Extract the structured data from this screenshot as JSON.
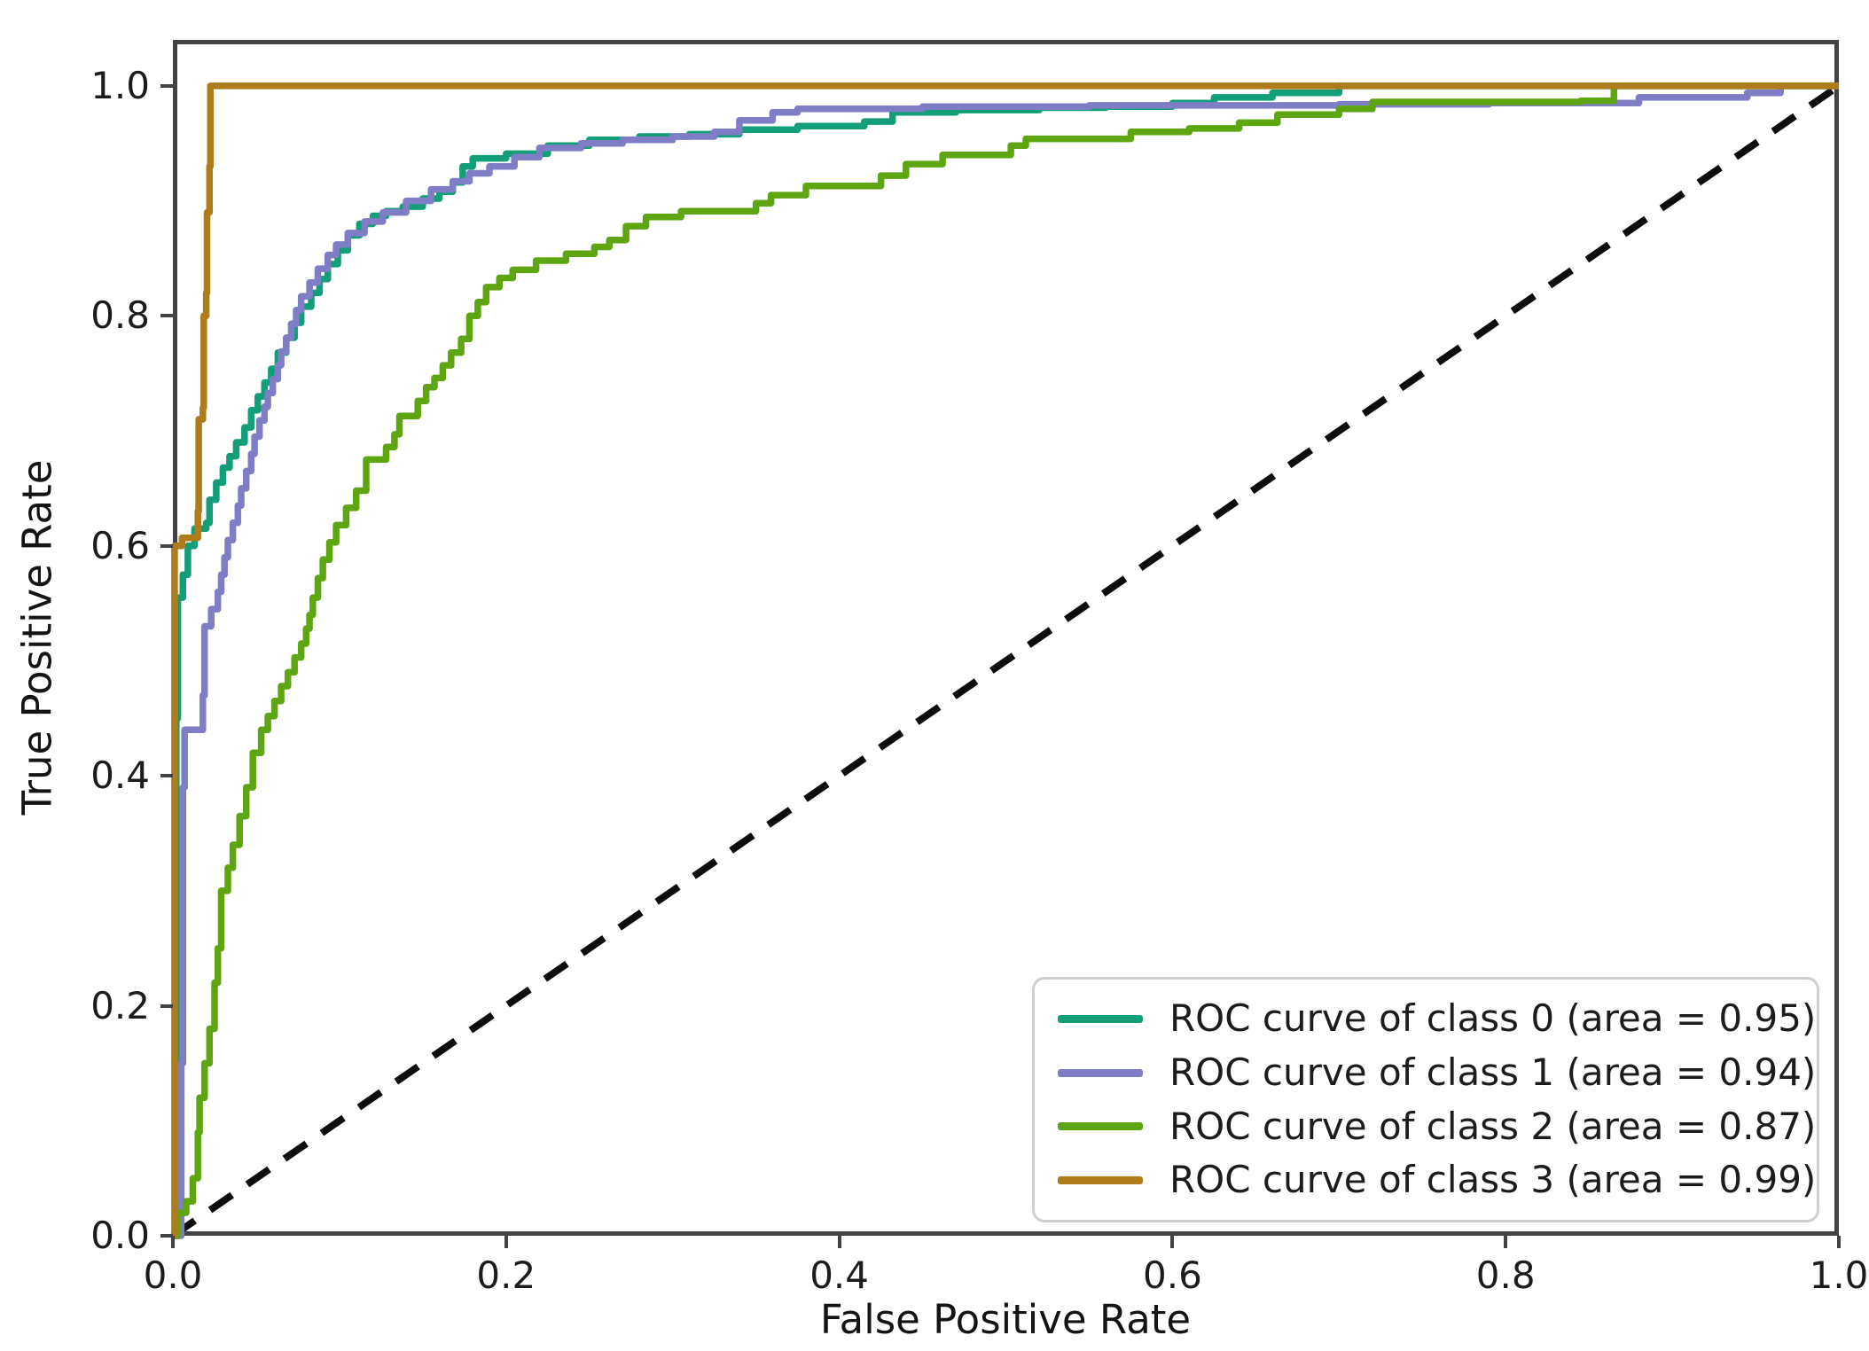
{
  "chart_data": {
    "type": "line",
    "subtype": "roc-step-curves",
    "title": "",
    "xlabel": "False Positive Rate",
    "ylabel": "True Positive Rate",
    "xlim": [
      0.0,
      1.0
    ],
    "ylim": [
      0.0,
      1.04
    ],
    "grid": false,
    "legend_position": "lower right",
    "xticks": [
      "0.0",
      "0.2",
      "0.4",
      "0.6",
      "0.8",
      "1.0"
    ],
    "xtick_values": [
      0.0,
      0.2,
      0.4,
      0.6,
      0.8,
      1.0
    ],
    "yticks": [
      "0.0",
      "0.2",
      "0.4",
      "0.6",
      "0.8",
      "1.0"
    ],
    "ytick_values": [
      0.0,
      0.2,
      0.4,
      0.6,
      0.8,
      1.0
    ],
    "reference_line": {
      "name": "chance-diagonal",
      "style": "dashed",
      "color": "#0d0d0d",
      "points": [
        [
          0,
          0
        ],
        [
          1,
          1
        ]
      ]
    },
    "series": [
      {
        "class": 0,
        "label": "ROC curve of class 0 (area = 0.95)",
        "auc": 0.95,
        "color": "#119e78",
        "step_points": [
          [
            0,
            0
          ],
          [
            0.002,
            0.45
          ],
          [
            0.003,
            0.555
          ],
          [
            0.006,
            0.575
          ],
          [
            0.009,
            0.6
          ],
          [
            0.013,
            0.615
          ],
          [
            0.02,
            0.62
          ],
          [
            0.022,
            0.64
          ],
          [
            0.026,
            0.655
          ],
          [
            0.03,
            0.668
          ],
          [
            0.034,
            0.678
          ],
          [
            0.038,
            0.69
          ],
          [
            0.043,
            0.703
          ],
          [
            0.047,
            0.718
          ],
          [
            0.051,
            0.73
          ],
          [
            0.055,
            0.742
          ],
          [
            0.059,
            0.754
          ],
          [
            0.063,
            0.768
          ],
          [
            0.068,
            0.781
          ],
          [
            0.073,
            0.794
          ],
          [
            0.077,
            0.808
          ],
          [
            0.083,
            0.82
          ],
          [
            0.088,
            0.832
          ],
          [
            0.093,
            0.845
          ],
          [
            0.099,
            0.857
          ],
          [
            0.105,
            0.87
          ],
          [
            0.112,
            0.88
          ],
          [
            0.12,
            0.887
          ],
          [
            0.128,
            0.891
          ],
          [
            0.138,
            0.895
          ],
          [
            0.15,
            0.902
          ],
          [
            0.16,
            0.908
          ],
          [
            0.168,
            0.916
          ],
          [
            0.174,
            0.93
          ],
          [
            0.18,
            0.937
          ],
          [
            0.2,
            0.941
          ],
          [
            0.225,
            0.948
          ],
          [
            0.25,
            0.953
          ],
          [
            0.28,
            0.956
          ],
          [
            0.31,
            0.958
          ],
          [
            0.34,
            0.962
          ],
          [
            0.375,
            0.965
          ],
          [
            0.415,
            0.969
          ],
          [
            0.432,
            0.977
          ],
          [
            0.47,
            0.979
          ],
          [
            0.52,
            0.981
          ],
          [
            0.56,
            0.982
          ],
          [
            0.6,
            0.985
          ],
          [
            0.625,
            0.99
          ],
          [
            0.66,
            0.994
          ],
          [
            0.7,
            1
          ],
          [
            1,
            1
          ]
        ]
      },
      {
        "class": 1,
        "label": "ROC curve of class 1 (area = 0.94)",
        "auc": 0.94,
        "color": "#7f7dc5",
        "step_points": [
          [
            0,
            0
          ],
          [
            0.005,
            0.15
          ],
          [
            0.006,
            0.39
          ],
          [
            0.007,
            0.44
          ],
          [
            0.018,
            0.47
          ],
          [
            0.019,
            0.53
          ],
          [
            0.023,
            0.545
          ],
          [
            0.027,
            0.56
          ],
          [
            0.029,
            0.575
          ],
          [
            0.031,
            0.59
          ],
          [
            0.033,
            0.605
          ],
          [
            0.036,
            0.62
          ],
          [
            0.039,
            0.635
          ],
          [
            0.041,
            0.65
          ],
          [
            0.044,
            0.665
          ],
          [
            0.047,
            0.68
          ],
          [
            0.049,
            0.695
          ],
          [
            0.052,
            0.709
          ],
          [
            0.055,
            0.721
          ],
          [
            0.057,
            0.733
          ],
          [
            0.06,
            0.745
          ],
          [
            0.063,
            0.757
          ],
          [
            0.065,
            0.769
          ],
          [
            0.068,
            0.781
          ],
          [
            0.071,
            0.793
          ],
          [
            0.074,
            0.805
          ],
          [
            0.077,
            0.817
          ],
          [
            0.082,
            0.829
          ],
          [
            0.087,
            0.841
          ],
          [
            0.093,
            0.853
          ],
          [
            0.098,
            0.862
          ],
          [
            0.105,
            0.872
          ],
          [
            0.115,
            0.882
          ],
          [
            0.126,
            0.89
          ],
          [
            0.14,
            0.9
          ],
          [
            0.155,
            0.91
          ],
          [
            0.168,
            0.917
          ],
          [
            0.178,
            0.924
          ],
          [
            0.19,
            0.93
          ],
          [
            0.205,
            0.938
          ],
          [
            0.22,
            0.946
          ],
          [
            0.245,
            0.95
          ],
          [
            0.27,
            0.953
          ],
          [
            0.3,
            0.956
          ],
          [
            0.325,
            0.96
          ],
          [
            0.34,
            0.97
          ],
          [
            0.36,
            0.977
          ],
          [
            0.375,
            0.98
          ],
          [
            0.45,
            0.982
          ],
          [
            0.55,
            0.983
          ],
          [
            0.7,
            0.984
          ],
          [
            0.79,
            0.985
          ],
          [
            0.88,
            0.99
          ],
          [
            0.945,
            0.994
          ],
          [
            0.965,
            1
          ],
          [
            1,
            1
          ]
        ]
      },
      {
        "class": 2,
        "label": "ROC curve of class 2 (area = 0.87)",
        "auc": 0.87,
        "color": "#5da611",
        "step_points": [
          [
            0,
            0
          ],
          [
            0.003,
            0.02
          ],
          [
            0.008,
            0.03
          ],
          [
            0.012,
            0.05
          ],
          [
            0.015,
            0.09
          ],
          [
            0.016,
            0.12
          ],
          [
            0.019,
            0.15
          ],
          [
            0.022,
            0.18
          ],
          [
            0.025,
            0.22
          ],
          [
            0.027,
            0.25
          ],
          [
            0.029,
            0.3
          ],
          [
            0.033,
            0.32
          ],
          [
            0.036,
            0.34
          ],
          [
            0.04,
            0.365
          ],
          [
            0.044,
            0.39
          ],
          [
            0.048,
            0.42
          ],
          [
            0.053,
            0.44
          ],
          [
            0.057,
            0.452
          ],
          [
            0.061,
            0.465
          ],
          [
            0.065,
            0.478
          ],
          [
            0.069,
            0.49
          ],
          [
            0.073,
            0.503
          ],
          [
            0.077,
            0.515
          ],
          [
            0.08,
            0.528
          ],
          [
            0.082,
            0.54
          ],
          [
            0.084,
            0.555
          ],
          [
            0.087,
            0.572
          ],
          [
            0.09,
            0.588
          ],
          [
            0.094,
            0.603
          ],
          [
            0.098,
            0.618
          ],
          [
            0.104,
            0.633
          ],
          [
            0.11,
            0.648
          ],
          [
            0.116,
            0.675
          ],
          [
            0.128,
            0.686
          ],
          [
            0.133,
            0.697
          ],
          [
            0.136,
            0.713
          ],
          [
            0.147,
            0.726
          ],
          [
            0.152,
            0.738
          ],
          [
            0.157,
            0.746
          ],
          [
            0.162,
            0.757
          ],
          [
            0.167,
            0.768
          ],
          [
            0.173,
            0.78
          ],
          [
            0.178,
            0.8
          ],
          [
            0.183,
            0.812
          ],
          [
            0.188,
            0.825
          ],
          [
            0.196,
            0.833
          ],
          [
            0.204,
            0.84
          ],
          [
            0.218,
            0.848
          ],
          [
            0.236,
            0.854
          ],
          [
            0.253,
            0.86
          ],
          [
            0.262,
            0.866
          ],
          [
            0.272,
            0.878
          ],
          [
            0.284,
            0.886
          ],
          [
            0.305,
            0.891
          ],
          [
            0.35,
            0.898
          ],
          [
            0.359,
            0.905
          ],
          [
            0.38,
            0.913
          ],
          [
            0.425,
            0.922
          ],
          [
            0.44,
            0.932
          ],
          [
            0.462,
            0.94
          ],
          [
            0.503,
            0.948
          ],
          [
            0.512,
            0.954
          ],
          [
            0.575,
            0.96
          ],
          [
            0.61,
            0.963
          ],
          [
            0.64,
            0.968
          ],
          [
            0.663,
            0.975
          ],
          [
            0.7,
            0.98
          ],
          [
            0.72,
            0.986
          ],
          [
            0.845,
            0.987
          ],
          [
            0.865,
            1
          ],
          [
            1,
            1
          ]
        ]
      },
      {
        "class": 3,
        "label": "ROC curve of class 3 (area = 0.99)",
        "auc": 0.99,
        "color": "#ae7c1b",
        "step_points": [
          [
            0,
            0
          ],
          [
            0.001,
            0.6
          ],
          [
            0.0055,
            0.607
          ],
          [
            0.015,
            0.63
          ],
          [
            0.0155,
            0.71
          ],
          [
            0.018,
            0.72
          ],
          [
            0.0185,
            0.8
          ],
          [
            0.02,
            0.82
          ],
          [
            0.0205,
            0.89
          ],
          [
            0.022,
            0.93
          ],
          [
            0.0225,
            1
          ],
          [
            1,
            1
          ]
        ]
      }
    ]
  }
}
